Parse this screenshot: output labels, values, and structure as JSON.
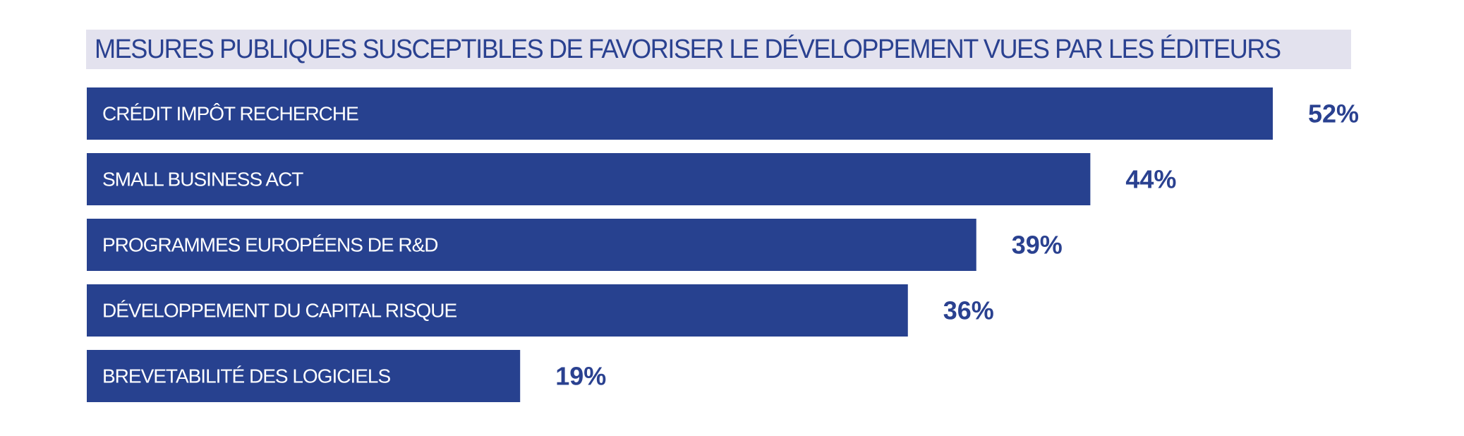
{
  "chart_data": {
    "type": "bar",
    "orientation": "horizontal",
    "title": "MESURES PUBLIQUES SUSCEPTIBLES DE FAVORISER LE DÉVELOPPEMENT VUES PAR LES ÉDITEURS",
    "categories": [
      "CRÉDIT IMPÔT RECHERCHE",
      "SMALL BUSINESS ACT",
      "PROGRAMMES EUROPÉENS DE R&D",
      "DÉVELOPPEMENT DU CAPITAL RISQUE",
      "BREVETABILITÉ DES LOGICIELS"
    ],
    "values": [
      52,
      44,
      39,
      36,
      19
    ],
    "value_suffix": "%",
    "xlabel": "",
    "ylabel": "",
    "grid": false,
    "legend": "none",
    "colors": {
      "bar": "#27418f",
      "bar_text": "#ffffff",
      "value_text": "#2a4190",
      "title_text": "#2a4190",
      "title_background": "#e3e2ee"
    }
  }
}
